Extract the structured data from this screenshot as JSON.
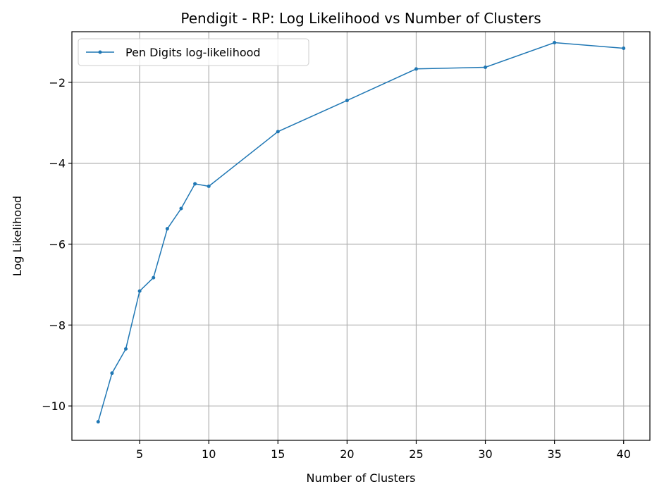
{
  "chart_data": {
    "type": "line",
    "title": "Pendigit - RP: Log Likelihood vs Number of Clusters",
    "xlabel": "Number of Clusters",
    "ylabel": "Log Likelihood",
    "xlim": [
      0.1,
      41.9
    ],
    "ylim": [
      -10.85,
      -0.75
    ],
    "xticks": [
      5,
      10,
      15,
      20,
      25,
      30,
      35,
      40
    ],
    "xtick_labels": [
      "5",
      "10",
      "15",
      "20",
      "25",
      "30",
      "35",
      "40"
    ],
    "yticks": [
      -10,
      -8,
      -6,
      -4,
      -2
    ],
    "ytick_labels": [
      "−10",
      "−8",
      "−6",
      "−4",
      "−2"
    ],
    "grid": true,
    "legend_position": "top-left",
    "series": [
      {
        "name": "Pen Digits log-likelihood",
        "color": "#1f77b4",
        "x": [
          2,
          3,
          4,
          5,
          6,
          7,
          8,
          9,
          10,
          15,
          20,
          25,
          30,
          35,
          40
        ],
        "y": [
          -10.39,
          -9.19,
          -8.59,
          -7.16,
          -6.83,
          -5.62,
          -5.12,
          -4.51,
          -4.57,
          -3.22,
          -2.45,
          -1.67,
          -1.63,
          -1.02,
          -1.16
        ]
      }
    ]
  }
}
